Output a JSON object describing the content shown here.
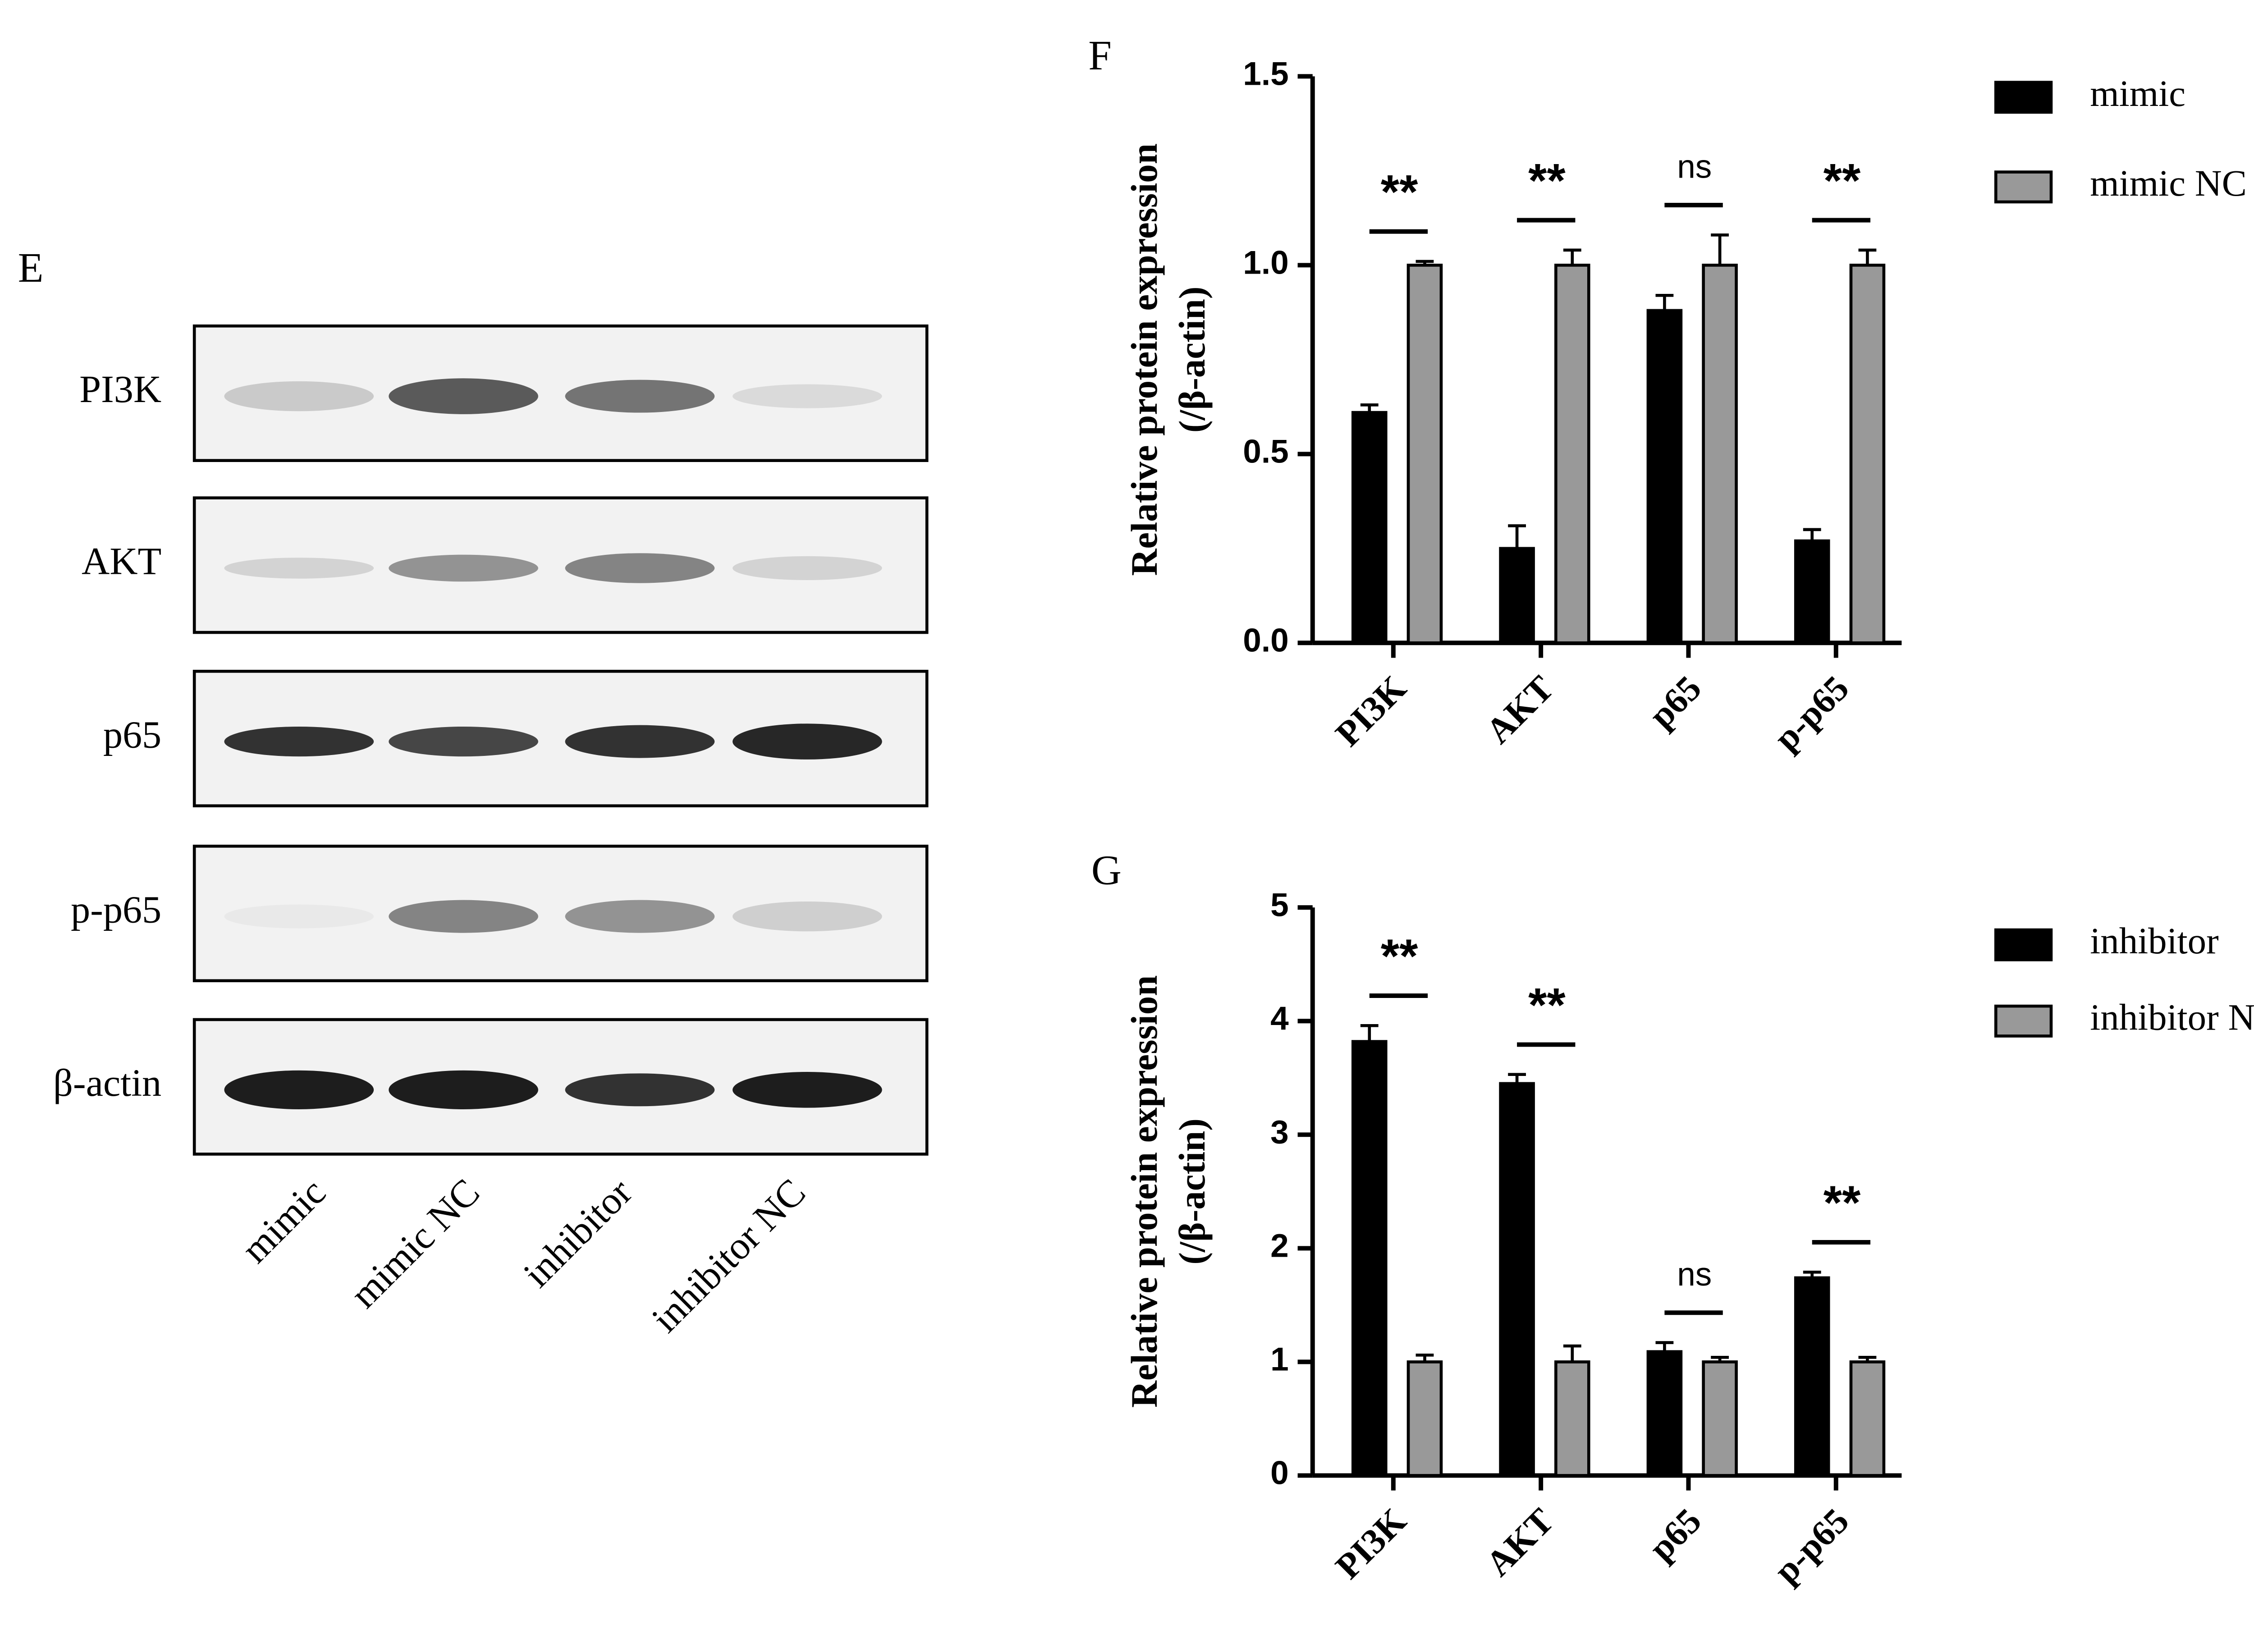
{
  "blot": {
    "panel_label": "E",
    "rows": [
      "PI3K",
      "AKT",
      "p65",
      "p-p65",
      "β-actin"
    ],
    "lanes": [
      "mimic",
      "mimic NC",
      "inhibitor",
      "inhibitor NC"
    ]
  },
  "chart_data": [
    {
      "type": "bar",
      "panel_label": "F",
      "ylabel": [
        "Relative protein expression",
        "(/β-actin)"
      ],
      "categories": [
        "PI3K",
        "AKT",
        "p65",
        "p-p65"
      ],
      "series": [
        {
          "name": "mimic",
          "color": "#000000",
          "values": [
            0.61,
            0.25,
            0.88,
            0.27
          ],
          "errors": [
            0.02,
            0.06,
            0.04,
            0.03
          ]
        },
        {
          "name": "mimic NC",
          "color": "#999999",
          "values": [
            1.0,
            1.0,
            1.0,
            1.0
          ],
          "errors": [
            0.01,
            0.04,
            0.08,
            0.04
          ]
        }
      ],
      "significance": [
        "**",
        "**",
        "ns",
        "**"
      ],
      "ylim": [
        0,
        1.5
      ],
      "yticks": [
        {
          "value": 0,
          "label": "0.0"
        },
        {
          "value": 0.5,
          "label": "0.5"
        },
        {
          "value": 1,
          "label": "1.0"
        },
        {
          "value": 1.5,
          "label": "1.5"
        }
      ]
    },
    {
      "type": "bar",
      "panel_label": "G",
      "ylabel": [
        "Relative protein expression",
        "(/β-actin)"
      ],
      "categories": [
        "PI3K",
        "AKT",
        "p65",
        "p-p65"
      ],
      "series": [
        {
          "name": "inhibitor",
          "color": "#000000",
          "values": [
            3.82,
            3.45,
            1.09,
            1.74
          ],
          "errors": [
            0.14,
            0.08,
            0.08,
            0.05
          ]
        },
        {
          "name": "inhibitor NC",
          "color": "#999999",
          "values": [
            1.0,
            1.0,
            1.0,
            1.0
          ],
          "errors": [
            0.06,
            0.14,
            0.04,
            0.04
          ]
        }
      ],
      "significance": [
        "**",
        "**",
        "ns",
        "**"
      ],
      "ylim": [
        0,
        5
      ],
      "yticks": [
        0,
        1,
        2,
        3,
        4,
        5
      ]
    }
  ]
}
